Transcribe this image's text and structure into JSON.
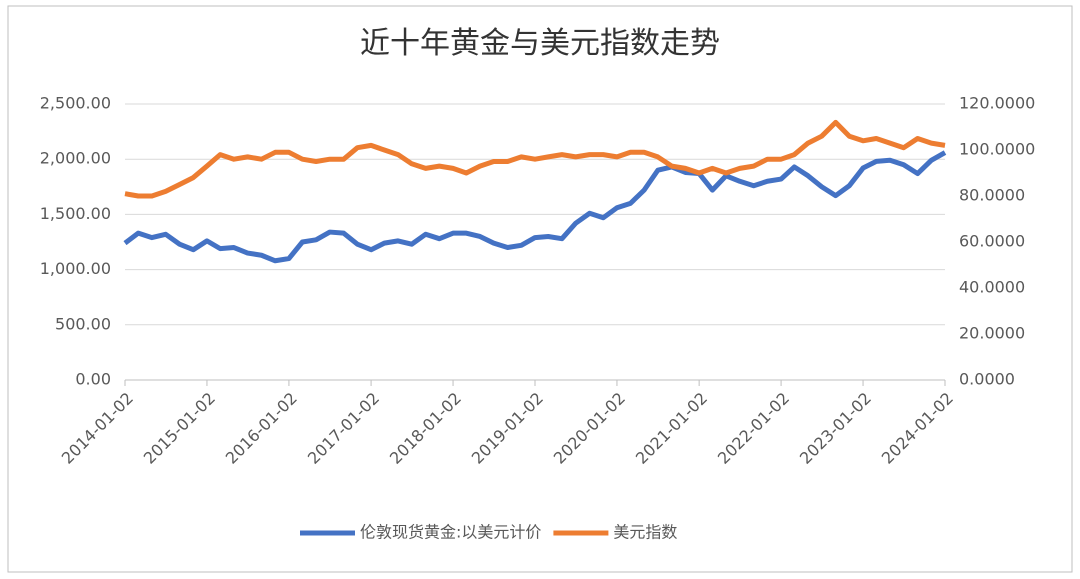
{
  "chart_data": {
    "type": "line",
    "title": "近十年黄金与美元指数走势",
    "x": [
      "2014-01-02",
      "2014-03-02",
      "2014-05-02",
      "2014-07-02",
      "2014-09-02",
      "2014-11-02",
      "2015-01-02",
      "2015-03-02",
      "2015-05-02",
      "2015-07-02",
      "2015-09-02",
      "2015-11-02",
      "2016-01-02",
      "2016-03-02",
      "2016-05-02",
      "2016-07-02",
      "2016-09-02",
      "2016-11-02",
      "2017-01-02",
      "2017-03-02",
      "2017-05-02",
      "2017-07-02",
      "2017-09-02",
      "2017-11-02",
      "2018-01-02",
      "2018-03-02",
      "2018-05-02",
      "2018-07-02",
      "2018-09-02",
      "2018-11-02",
      "2019-01-02",
      "2019-03-02",
      "2019-05-02",
      "2019-07-02",
      "2019-09-02",
      "2019-11-02",
      "2020-01-02",
      "2020-03-02",
      "2020-05-02",
      "2020-07-02",
      "2020-09-02",
      "2020-11-02",
      "2021-01-02",
      "2021-03-02",
      "2021-05-02",
      "2021-07-02",
      "2021-09-02",
      "2021-11-02",
      "2022-01-02",
      "2022-03-02",
      "2022-05-02",
      "2022-07-02",
      "2022-09-02",
      "2022-11-02",
      "2023-01-02",
      "2023-03-02",
      "2023-05-02",
      "2023-07-02",
      "2023-09-02",
      "2023-11-02",
      "2024-01-02"
    ],
    "series": [
      {
        "name": "伦敦现货黄金:以美元计价",
        "color": "#4472c4",
        "values": [
          1240,
          1330,
          1290,
          1320,
          1230,
          1180,
          1260,
          1190,
          1200,
          1150,
          1130,
          1080,
          1100,
          1250,
          1270,
          1340,
          1330,
          1230,
          1180,
          1240,
          1260,
          1230,
          1320,
          1280,
          1330,
          1330,
          1300,
          1240,
          1200,
          1220,
          1290,
          1300,
          1280,
          1420,
          1510,
          1470,
          1560,
          1600,
          1720,
          1900,
          1930,
          1880,
          1870,
          1720,
          1850,
          1800,
          1760,
          1800,
          1820,
          1930,
          1850,
          1750,
          1670,
          1760,
          1920,
          1980,
          1990,
          1950,
          1870,
          1990,
          2060
        ]
      },
      {
        "name": "美元指数",
        "color": "#ed7d31",
        "axis": "y2",
        "values": [
          81,
          80,
          80,
          82,
          85,
          88,
          93,
          98,
          96,
          97,
          96,
          99,
          99,
          96,
          95,
          96,
          96,
          101,
          102,
          100,
          98,
          94,
          92,
          93,
          92,
          90,
          93,
          95,
          95,
          97,
          96,
          97,
          98,
          97,
          98,
          98,
          97,
          99,
          99,
          97,
          93,
          92,
          90,
          92,
          90,
          92,
          93,
          96,
          96,
          98,
          103,
          106,
          112,
          106,
          104,
          105,
          103,
          101,
          105,
          103,
          102
        ]
      }
    ],
    "xlim": [
      "2014-01-02",
      "2024-01-02"
    ],
    "xticks": [
      "2014-01-02",
      "2015-01-02",
      "2016-01-02",
      "2017-01-02",
      "2018-01-02",
      "2019-01-02",
      "2020-01-02",
      "2021-01-02",
      "2022-01-02",
      "2023-01-02",
      "2024-01-02"
    ],
    "ylim": [
      0,
      2500
    ],
    "yticks": [
      {
        "value": 0,
        "label": "0.00"
      },
      {
        "value": 500,
        "label": "500.00"
      },
      {
        "value": 1000,
        "label": "1,000.00"
      },
      {
        "value": 1500,
        "label": "1,500.00"
      },
      {
        "value": 2000,
        "label": "2,000.00"
      },
      {
        "value": 2500,
        "label": "2,500.00"
      }
    ],
    "y2lim": [
      0,
      120
    ],
    "y2ticks": [
      {
        "value": 0,
        "label": "0.0000"
      },
      {
        "value": 20,
        "label": "20.0000"
      },
      {
        "value": 40,
        "label": "40.0000"
      },
      {
        "value": 60,
        "label": "60.0000"
      },
      {
        "value": 80,
        "label": "80.0000"
      },
      {
        "value": 100,
        "label": "100.0000"
      },
      {
        "value": 120,
        "label": "120.0000"
      }
    ],
    "grid": true,
    "legend": "bottom"
  }
}
